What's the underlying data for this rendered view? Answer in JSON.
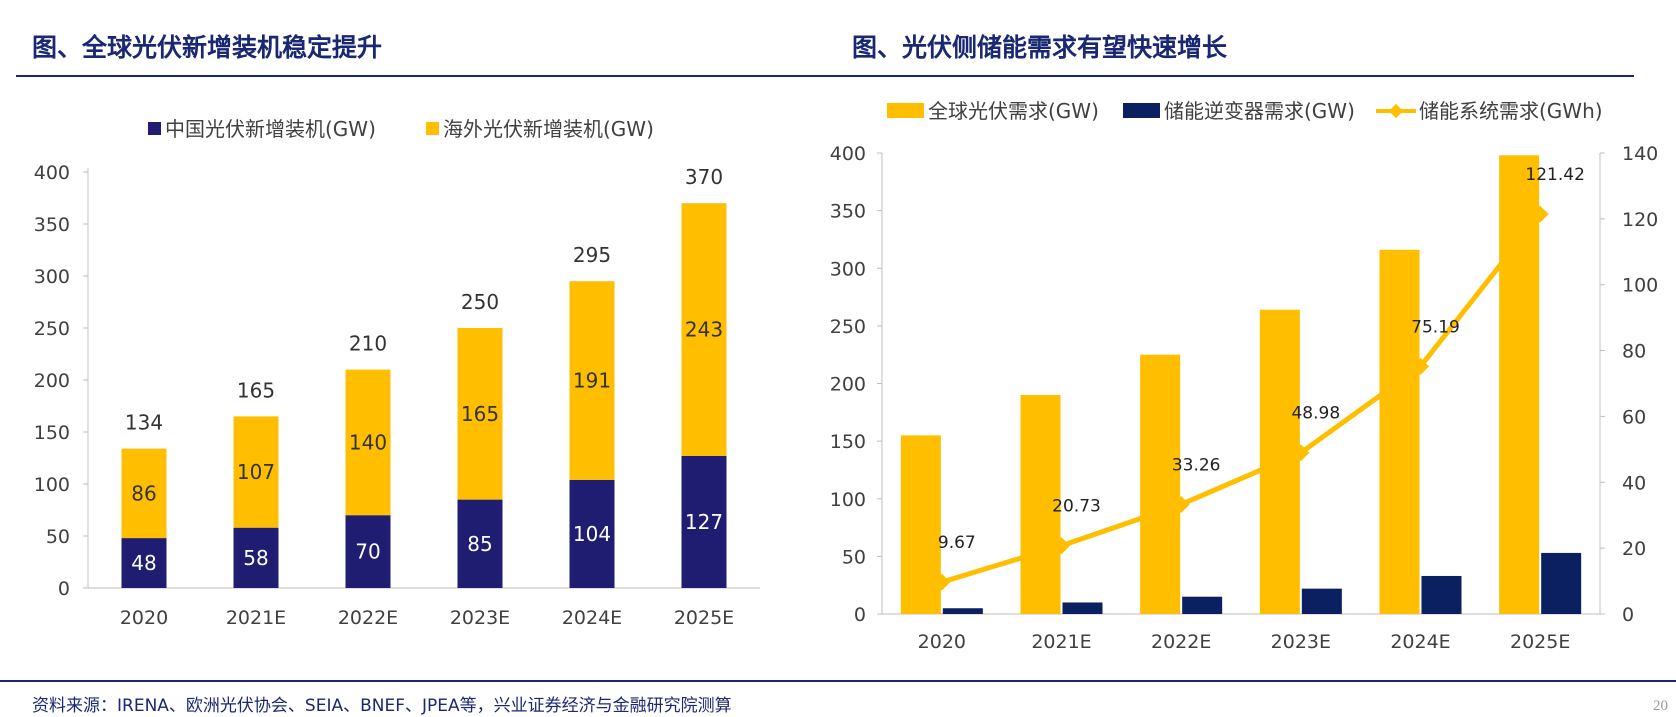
{
  "header": {
    "left_title": "图、全球光伏新增装机稳定提升",
    "right_title": "图、光伏侧储能需求有望快速增长"
  },
  "footer": {
    "source": "资料来源：IRENA、欧洲光伏协会、SEIA、BNEF、JPEA等，兴业证券经济与金融研究院测算",
    "page_number": "20"
  },
  "colors": {
    "navy": "#1f1d72",
    "gold": "#ffbe00",
    "dark_navy": "#0b2060",
    "axis": "#bfbfbf"
  },
  "chart_data": [
    {
      "type": "bar",
      "stacked": true,
      "categories": [
        "2020",
        "2021E",
        "2022E",
        "2023E",
        "2024E",
        "2025E"
      ],
      "series": [
        {
          "name": "中国光伏新增装机(GW)",
          "values": [
            48,
            58,
            70,
            85,
            104,
            127
          ]
        },
        {
          "name": "海外光伏新增装机(GW)",
          "values": [
            86,
            107,
            140,
            165,
            191,
            243
          ]
        }
      ],
      "totals": [
        134,
        165,
        210,
        250,
        295,
        370
      ],
      "yticks": [
        "0",
        "50",
        "100",
        "150",
        "200",
        "250",
        "300",
        "350",
        "400"
      ],
      "ylim": [
        0,
        400
      ],
      "legend": "top"
    },
    {
      "type": "bar",
      "categories": [
        "2020",
        "2021E",
        "2022E",
        "2023E",
        "2024E",
        "2025E"
      ],
      "series": [
        {
          "name": "全球光伏需求(GW)",
          "axis": "left",
          "values": [
            155,
            190,
            225,
            264,
            316,
            398
          ]
        },
        {
          "name": "储能逆变器需求(GW)",
          "axis": "left",
          "values": [
            5,
            10,
            15,
            22,
            33,
            53
          ]
        },
        {
          "name": "储能系统需求(GWh)",
          "axis": "right",
          "type": "line",
          "values": [
            9.67,
            20.73,
            33.26,
            48.98,
            75.19,
            121.42
          ]
        }
      ],
      "line_labels": [
        "9.67",
        "20.73",
        "33.26",
        "48.98",
        "75.19",
        "121.42"
      ],
      "yticks_left": [
        "0",
        "50",
        "100",
        "150",
        "200",
        "250",
        "300",
        "350",
        "400"
      ],
      "yticks_right": [
        "0",
        "20",
        "40",
        "60",
        "80",
        "100",
        "120",
        "140"
      ],
      "ylim_left": [
        0,
        400
      ],
      "ylim_right": [
        0,
        140
      ],
      "legend": "top"
    }
  ]
}
